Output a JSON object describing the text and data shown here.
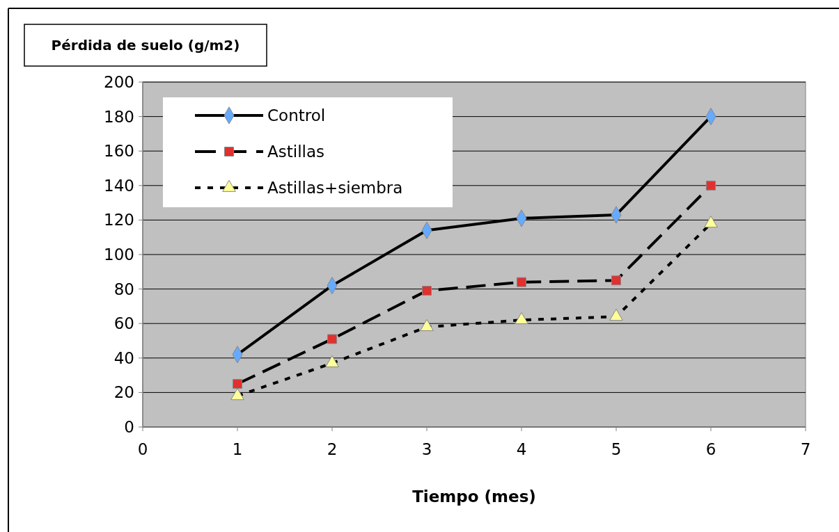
{
  "chart_data": {
    "type": "line",
    "title": "Pérdida de suelo (g/m2)",
    "xlabel": "Tiempo (mes)",
    "x": [
      1,
      2,
      3,
      4,
      5,
      6
    ],
    "xlim": [
      0,
      7
    ],
    "xticks": [
      0,
      1,
      2,
      3,
      4,
      5,
      6,
      7
    ],
    "ylim": [
      0,
      200
    ],
    "yticks": [
      0,
      20,
      40,
      60,
      80,
      100,
      120,
      140,
      160,
      180,
      200
    ],
    "grid": "y",
    "legend": "top left",
    "series": [
      {
        "name": "Control",
        "color": "#66aaff",
        "marker": "diamond",
        "line_style": "solid",
        "values": [
          42,
          82,
          114,
          121,
          123,
          180
        ]
      },
      {
        "name": "Astillas",
        "color": "#e03030",
        "marker": "square",
        "line_style": "dashed",
        "values": [
          25,
          51,
          79,
          84,
          85,
          140
        ]
      },
      {
        "name": "Astillas+siembra",
        "color": "#ffff99",
        "marker": "triangle",
        "line_style": "dotted",
        "values": [
          18,
          37,
          58,
          62,
          64,
          118
        ]
      }
    ]
  }
}
